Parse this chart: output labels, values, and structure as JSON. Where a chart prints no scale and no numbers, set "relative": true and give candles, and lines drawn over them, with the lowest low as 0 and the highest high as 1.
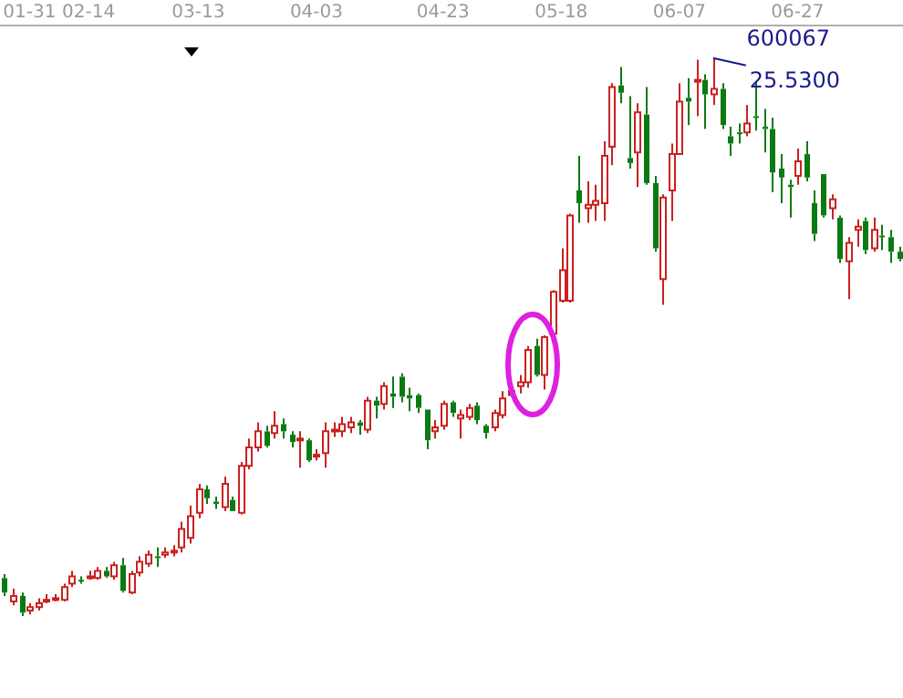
{
  "chart_data": {
    "type": "candlestick",
    "title": "600067",
    "relative": true,
    "grid": false,
    "legend": false,
    "categories": [
      null,
      null,
      null,
      "01-31",
      null,
      null,
      null,
      null,
      null,
      null,
      "02-14",
      null,
      null,
      null,
      null,
      null,
      null,
      null,
      null,
      null,
      null,
      null,
      null,
      "03-13",
      null,
      null,
      null,
      null,
      null,
      null,
      null,
      null,
      null,
      null,
      null,
      null,
      null,
      "04-03",
      null,
      null,
      null,
      null,
      null,
      null,
      null,
      null,
      null,
      null,
      null,
      null,
      null,
      null,
      "04-23",
      null,
      null,
      null,
      null,
      null,
      null,
      null,
      null,
      null,
      null,
      null,
      null,
      null,
      "05-18",
      null,
      null,
      null,
      null,
      null,
      null,
      null,
      null,
      null,
      null,
      null,
      null,
      null,
      "06-07",
      null,
      null,
      null,
      null,
      null,
      null,
      null,
      null,
      null,
      null,
      null,
      null,
      null,
      "06-27",
      null,
      null,
      null,
      null,
      null,
      null,
      null,
      null,
      null,
      null,
      null,
      null
    ],
    "ohlc": [
      [
        0.068,
        0.075,
        0.036,
        0.042
      ],
      [
        0.026,
        0.049,
        0.019,
        0.036
      ],
      [
        0.036,
        0.042,
        0,
        0.006
      ],
      [
        0.01,
        0.023,
        0.003,
        0.016
      ],
      [
        0.016,
        0.032,
        0.01,
        0.023
      ],
      [
        0.026,
        0.039,
        0.023,
        0.029
      ],
      [
        0.029,
        0.039,
        0.026,
        0.032
      ],
      [
        0.029,
        0.058,
        0.026,
        0.052
      ],
      [
        0.058,
        0.081,
        0.052,
        0.071
      ],
      [
        0.065,
        0.071,
        0.058,
        0.062
      ],
      [
        0.068,
        0.081,
        0.065,
        0.071
      ],
      [
        0.068,
        0.088,
        0.065,
        0.081
      ],
      [
        0.081,
        0.088,
        0.068,
        0.071
      ],
      [
        0.071,
        0.097,
        0.065,
        0.091
      ],
      [
        0.091,
        0.104,
        0.042,
        0.045
      ],
      [
        0.042,
        0.081,
        0.039,
        0.075
      ],
      [
        0.078,
        0.107,
        0.071,
        0.097
      ],
      [
        0.094,
        0.117,
        0.088,
        0.11
      ],
      [
        0.107,
        0.123,
        0.088,
        0.104
      ],
      [
        0.11,
        0.123,
        0.104,
        0.114
      ],
      [
        0.114,
        0.127,
        0.107,
        0.117
      ],
      [
        0.123,
        0.169,
        0.114,
        0.156
      ],
      [
        0.14,
        0.198,
        0.13,
        0.179
      ],
      [
        0.185,
        0.237,
        0.175,
        0.227
      ],
      [
        0.227,
        0.234,
        0.201,
        0.211
      ],
      [
        0.205,
        0.214,
        0.192,
        0.201
      ],
      [
        0.195,
        0.25,
        0.188,
        0.237
      ],
      [
        0.208,
        0.214,
        0.188,
        0.188
      ],
      [
        0.185,
        0.276,
        0.182,
        0.269
      ],
      [
        0.269,
        0.318,
        0.263,
        0.302
      ],
      [
        0.302,
        0.347,
        0.295,
        0.331
      ],
      [
        0.331,
        0.341,
        0.302,
        0.305
      ],
      [
        0.328,
        0.367,
        0.318,
        0.341
      ],
      [
        0.344,
        0.354,
        0.318,
        0.331
      ],
      [
        0.325,
        0.331,
        0.302,
        0.312
      ],
      [
        0.315,
        0.331,
        0.266,
        0.318
      ],
      [
        0.315,
        0.318,
        0.276,
        0.279
      ],
      [
        0.286,
        0.299,
        0.279,
        0.289
      ],
      [
        0.292,
        0.347,
        0.266,
        0.331
      ],
      [
        0.331,
        0.347,
        0.321,
        0.334
      ],
      [
        0.331,
        0.357,
        0.321,
        0.344
      ],
      [
        0.338,
        0.357,
        0.328,
        0.347
      ],
      [
        0.347,
        0.351,
        0.325,
        0.341
      ],
      [
        0.334,
        0.393,
        0.328,
        0.386
      ],
      [
        0.386,
        0.393,
        0.354,
        0.377
      ],
      [
        0.38,
        0.419,
        0.37,
        0.412
      ],
      [
        0.399,
        0.429,
        0.373,
        0.393
      ],
      [
        0.429,
        0.435,
        0.383,
        0.393
      ],
      [
        0.396,
        0.409,
        0.367,
        0.39
      ],
      [
        0.396,
        0.399,
        0.364,
        0.373
      ],
      [
        0.37,
        0.37,
        0.299,
        0.315
      ],
      [
        0.331,
        0.351,
        0.318,
        0.338
      ],
      [
        0.341,
        0.386,
        0.334,
        0.38
      ],
      [
        0.383,
        0.386,
        0.357,
        0.364
      ],
      [
        0.354,
        0.37,
        0.318,
        0.36
      ],
      [
        0.357,
        0.38,
        0.351,
        0.373
      ],
      [
        0.377,
        0.383,
        0.344,
        0.351
      ],
      [
        0.341,
        0.344,
        0.318,
        0.328
      ],
      [
        0.338,
        0.37,
        0.331,
        0.364
      ],
      [
        0.36,
        0.403,
        0.354,
        0.39
      ],
      [
        0.396,
        0.406,
        0.393,
        0.403
      ],
      [
        0.412,
        0.432,
        0.399,
        0.419
      ],
      [
        0.419,
        0.484,
        0.409,
        0.477
      ],
      [
        0.484,
        0.497,
        0.429,
        0.432
      ],
      [
        0.432,
        0.503,
        0.406,
        0.5
      ],
      [
        0.506,
        0.584,
        0.503,
        0.581
      ],
      [
        0.565,
        0.659,
        0.562,
        0.62
      ],
      [
        0.565,
        0.721,
        0.562,
        0.718
      ],
      [
        0.763,
        0.825,
        0.705,
        0.74
      ],
      [
        0.731,
        0.779,
        0.705,
        0.737
      ],
      [
        0.737,
        0.773,
        0.708,
        0.744
      ],
      [
        0.74,
        0.851,
        0.708,
        0.825
      ],
      [
        0.841,
        0.955,
        0.808,
        0.948
      ],
      [
        0.951,
        0.984,
        0.919,
        0.938
      ],
      [
        0.821,
        0.932,
        0.802,
        0.812
      ],
      [
        0.831,
        0.919,
        0.769,
        0.903
      ],
      [
        0.899,
        0.948,
        0.773,
        0.776
      ],
      [
        0.776,
        0.789,
        0.653,
        0.659
      ],
      [
        0.604,
        0.756,
        0.558,
        0.75
      ],
      [
        0.763,
        0.847,
        0.708,
        0.828
      ],
      [
        0.828,
        0.955,
        0.828,
        0.922
      ],
      [
        0.929,
        0.964,
        0.88,
        0.922
      ],
      [
        0.958,
        0.997,
        0.896,
        0.961
      ],
      [
        0.961,
        0.971,
        0.873,
        0.935
      ],
      [
        0.935,
        1,
        0.916,
        0.945
      ],
      [
        0.945,
        0.955,
        0.873,
        0.88
      ],
      [
        0.86,
        0.877,
        0.825,
        0.847
      ],
      [
        0.867,
        0.883,
        0.847,
        0.864
      ],
      [
        0.867,
        0.916,
        0.86,
        0.883
      ],
      [
        0.896,
        0.958,
        0.87,
        0.893
      ],
      [
        0.877,
        0.909,
        0.831,
        0.873
      ],
      [
        0.873,
        0.893,
        0.76,
        0.795
      ],
      [
        0.802,
        0.828,
        0.74,
        0.786
      ],
      [
        0.773,
        0.782,
        0.714,
        0.769
      ],
      [
        0.789,
        0.838,
        0.773,
        0.815
      ],
      [
        0.828,
        0.851,
        0.779,
        0.786
      ],
      [
        0.74,
        0.763,
        0.672,
        0.685
      ],
      [
        0.792,
        0.792,
        0.714,
        0.718
      ],
      [
        0.731,
        0.756,
        0.711,
        0.747
      ],
      [
        0.714,
        0.718,
        0.633,
        0.64
      ],
      [
        0.636,
        0.679,
        0.568,
        0.669
      ],
      [
        0.692,
        0.711,
        0.662,
        0.698
      ],
      [
        0.708,
        0.714,
        0.649,
        0.656
      ],
      [
        0.659,
        0.714,
        0.653,
        0.692
      ],
      [
        0.682,
        0.701,
        0.656,
        0.679
      ],
      [
        0.679,
        0.692,
        0.633,
        0.653
      ],
      [
        0.653,
        0.662,
        0.636,
        0.64
      ]
    ],
    "annotations": [
      "25.5300"
    ]
  }
}
